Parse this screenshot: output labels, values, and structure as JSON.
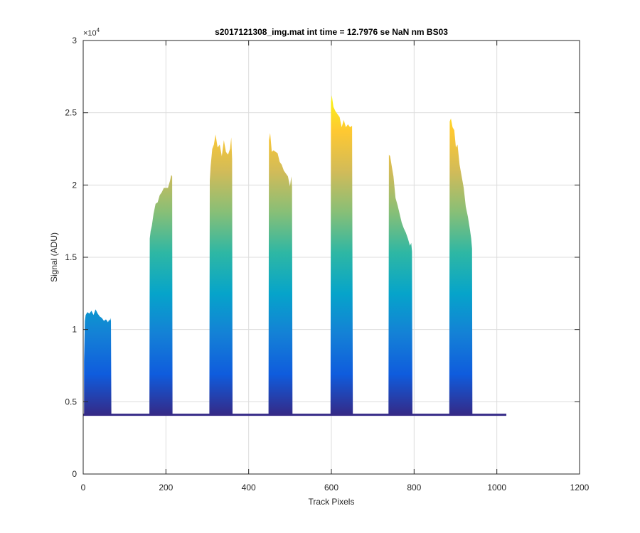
{
  "chart_data": {
    "type": "area",
    "title": "s2017121308_img.mat int time = 12.7976 se  NaN nm BS03",
    "xlabel": "Track Pixels",
    "ylabel": "Signal (ADU)",
    "xlim": [
      0,
      1200
    ],
    "ylim": [
      0,
      30000
    ],
    "x_ticks": [
      0,
      200,
      400,
      600,
      800,
      1000,
      1200
    ],
    "y_ticks": [
      0,
      0.5,
      1,
      1.5,
      2,
      2.5,
      3
    ],
    "y_tick_labels": [
      "0",
      "0.5",
      "1",
      "1.5",
      "2",
      "2.5",
      "3"
    ],
    "y_exponent_prefix": "×10",
    "y_exponent": "4",
    "grid": true,
    "colormap": [
      "#352a87",
      "#0f5cdd",
      "#1481d6",
      "#06a4ca",
      "#2eb7a4",
      "#87bf77",
      "#d1bb59",
      "#fec832",
      "#f9fb0e"
    ],
    "baseline": 4100,
    "baseline_x_range": [
      0,
      1023
    ],
    "peaks": [
      {
        "x": [
          2,
          4,
          6,
          10,
          15,
          20,
          25,
          30,
          35,
          40,
          45,
          50,
          55,
          60,
          63,
          65,
          67,
          68
        ],
        "y": [
          7800,
          10600,
          11000,
          11200,
          11100,
          11300,
          11000,
          11400,
          11100,
          10900,
          10800,
          10600,
          10700,
          10500,
          10700,
          10600,
          10800,
          4100
        ]
      },
      {
        "x": [
          160,
          161,
          163,
          166,
          170,
          175,
          180,
          185,
          190,
          195,
          200,
          205,
          210,
          213,
          215,
          216
        ],
        "y": [
          4100,
          16300,
          16800,
          17200,
          18000,
          18700,
          18800,
          19300,
          19500,
          19800,
          19800,
          19800,
          20300,
          20700,
          20600,
          4100
        ]
      },
      {
        "x": [
          305,
          306,
          308,
          312,
          316,
          320,
          325,
          330,
          335,
          340,
          345,
          350,
          355,
          358,
          360,
          361
        ],
        "y": [
          4100,
          20300,
          21300,
          22500,
          22800,
          23500,
          22600,
          22800,
          22000,
          23100,
          22300,
          22100,
          22500,
          23300,
          21800,
          4100
        ]
      },
      {
        "x": [
          448,
          449,
          452,
          456,
          460,
          465,
          470,
          475,
          480,
          485,
          490,
          495,
          500,
          503,
          505,
          506
        ],
        "y": [
          4100,
          23100,
          23600,
          22300,
          22400,
          22300,
          22200,
          21600,
          21400,
          21000,
          20800,
          20600,
          19900,
          20600,
          19900,
          4100
        ]
      },
      {
        "x": [
          598,
          599,
          601,
          605,
          610,
          615,
          620,
          625,
          630,
          635,
          640,
          645,
          650,
          652
        ],
        "y": [
          4100,
          25800,
          26200,
          25400,
          25100,
          24900,
          24700,
          24000,
          24500,
          24000,
          24200,
          24000,
          24100,
          4100
        ]
      },
      {
        "x": [
          738,
          739,
          742,
          746,
          750,
          755,
          760,
          765,
          770,
          775,
          780,
          785,
          790,
          793,
          795,
          796
        ],
        "y": [
          4100,
          22100,
          22000,
          21300,
          20600,
          19100,
          18600,
          18000,
          17400,
          17000,
          16700,
          16300,
          15800,
          16000,
          15400,
          4100
        ]
      },
      {
        "x": [
          885,
          886,
          889,
          893,
          897,
          901,
          905,
          910,
          915,
          920,
          925,
          930,
          935,
          938,
          940,
          941
        ],
        "y": [
          4100,
          24400,
          24600,
          24000,
          23800,
          22600,
          22800,
          21400,
          20600,
          19800,
          18500,
          17800,
          16900,
          16300,
          15600,
          4100
        ]
      }
    ]
  }
}
